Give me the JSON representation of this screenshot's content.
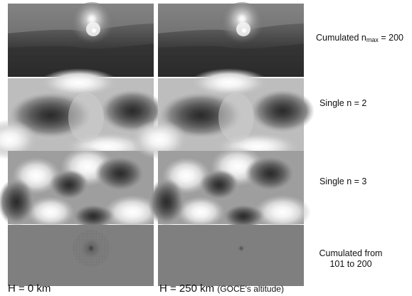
{
  "columns": [
    {
      "label_main": "H = 0 km",
      "label_note": ""
    },
    {
      "label_main": "H = 250 km",
      "label_note": "(GOCE's altitude)"
    }
  ],
  "rows": [
    {
      "label_pre": "Cumulated n",
      "label_sub": "max",
      "label_post": " = 200"
    },
    {
      "label": "Single n = 2"
    },
    {
      "label": "Single n = 3"
    },
    {
      "label_line1": "Cumulated from",
      "label_line2": "101 to 200"
    }
  ],
  "colors": {
    "background": "#ffffff",
    "divider": "#ffffff"
  }
}
